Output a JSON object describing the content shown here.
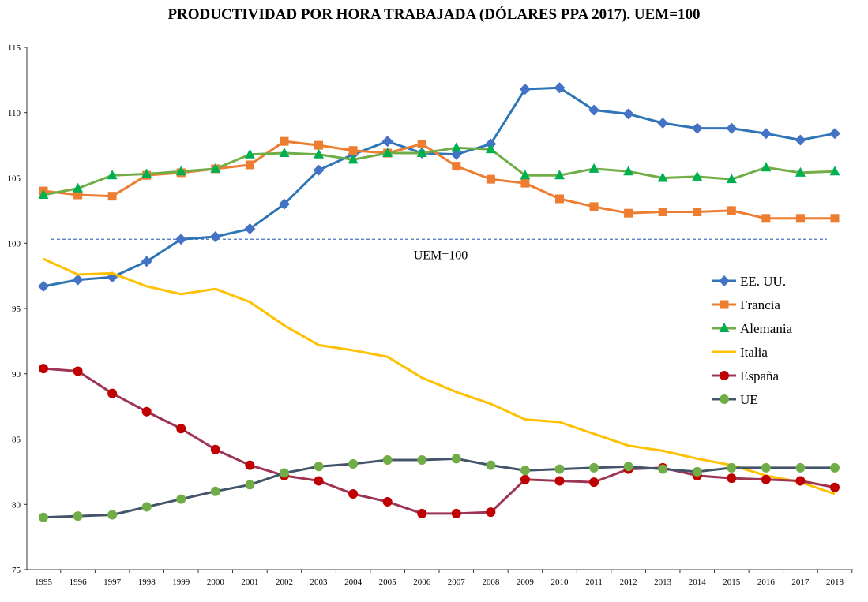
{
  "chart_data": {
    "type": "line",
    "title": "PRODUCTIVIDAD POR HORA TRABAJADA (DÓLARES PPA 2017).  UEM=100",
    "xlabel": "",
    "ylabel": "",
    "ylim": [
      75,
      115
    ],
    "yticks": [
      75,
      80,
      85,
      90,
      95,
      100,
      105,
      110,
      115
    ],
    "categories": [
      "1995",
      "1996",
      "1997",
      "1998",
      "1999",
      "2000",
      "2001",
      "2002",
      "2003",
      "2004",
      "2005",
      "2006",
      "2007",
      "2008",
      "2009",
      "2010",
      "2011",
      "2012",
      "2013",
      "2014",
      "2015",
      "2016",
      "2017",
      "2018"
    ],
    "reference_line": {
      "value": 100.3,
      "label": "UEM=100",
      "color": "#4472C4"
    },
    "legend_position": "right",
    "series": [
      {
        "name": "EE. UU.",
        "color": "#2E75B6",
        "marker": "diamond",
        "marker_color": "#4472C4",
        "values": [
          96.7,
          97.2,
          97.4,
          98.6,
          100.3,
          100.5,
          101.1,
          103.0,
          105.6,
          106.8,
          107.8,
          106.9,
          106.8,
          107.6,
          111.8,
          111.9,
          110.2,
          109.9,
          109.2,
          108.8,
          108.8,
          108.4,
          107.9,
          108.4
        ]
      },
      {
        "name": "Francia",
        "color": "#ED7D31",
        "marker": "square",
        "marker_color": "#ED7D31",
        "values": [
          104.0,
          103.7,
          103.6,
          105.2,
          105.4,
          105.7,
          106.0,
          107.8,
          107.5,
          107.1,
          106.9,
          107.6,
          105.9,
          104.9,
          104.6,
          103.4,
          102.8,
          102.3,
          102.4,
          102.4,
          102.5,
          101.9,
          101.9,
          101.9
        ]
      },
      {
        "name": "Alemania",
        "color": "#70AD47",
        "marker": "triangle",
        "marker_color": "#00B050",
        "values": [
          103.7,
          104.2,
          105.2,
          105.3,
          105.5,
          105.7,
          106.8,
          106.9,
          106.8,
          106.4,
          106.9,
          106.9,
          107.3,
          107.2,
          105.2,
          105.2,
          105.7,
          105.5,
          105.0,
          105.1,
          104.9,
          105.8,
          105.4,
          105.5
        ]
      },
      {
        "name": "Italia",
        "color": "#FFC000",
        "marker": "none",
        "marker_color": "#FFC000",
        "values": [
          98.8,
          97.6,
          97.7,
          96.7,
          96.1,
          96.5,
          95.5,
          93.7,
          92.2,
          91.8,
          91.3,
          89.7,
          88.6,
          87.7,
          86.5,
          86.3,
          85.4,
          84.5,
          84.1,
          83.5,
          83.0,
          82.2,
          81.7,
          80.8
        ]
      },
      {
        "name": "España",
        "color": "#9E3453",
        "marker": "circle",
        "marker_color": "#C00000",
        "values": [
          90.4,
          90.2,
          88.5,
          87.1,
          85.8,
          84.2,
          83.0,
          82.2,
          81.8,
          80.8,
          80.2,
          79.3,
          79.3,
          79.4,
          81.9,
          81.8,
          81.7,
          82.7,
          82.8,
          82.2,
          82.0,
          81.9,
          81.8,
          81.3
        ]
      },
      {
        "name": "UE",
        "color": "#44546A",
        "marker": "circle",
        "marker_color": "#70AD47",
        "values": [
          79.0,
          79.1,
          79.2,
          79.8,
          80.4,
          81.0,
          81.5,
          82.4,
          82.9,
          83.1,
          83.4,
          83.4,
          83.5,
          83.0,
          82.6,
          82.7,
          82.8,
          82.9,
          82.7,
          82.5,
          82.8,
          82.8,
          82.8,
          82.8
        ]
      }
    ]
  }
}
